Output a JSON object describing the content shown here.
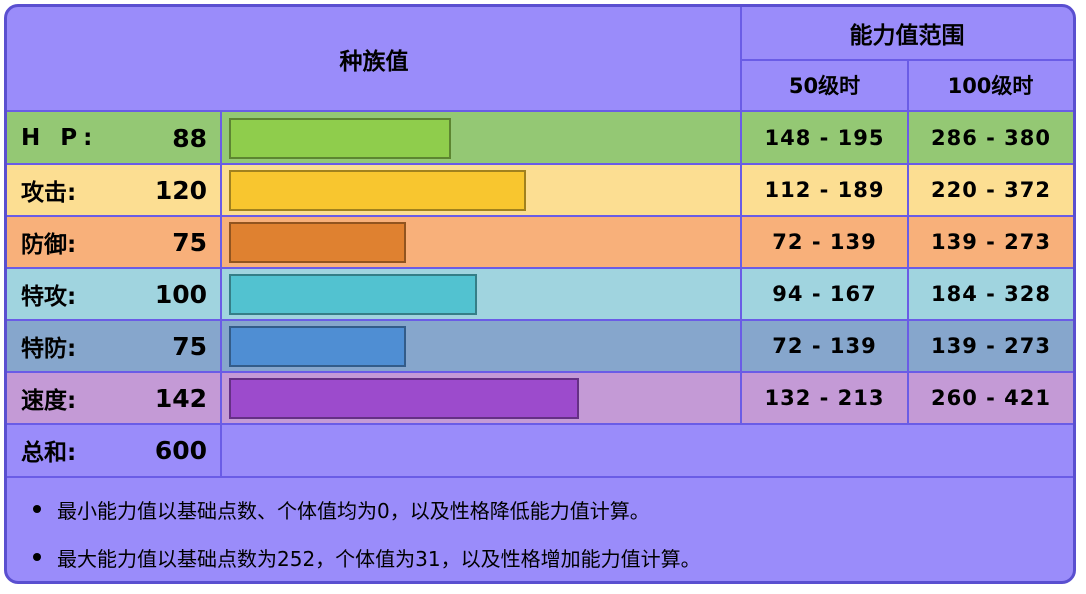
{
  "header": {
    "base_label": "种族值",
    "range_label": "能力值范围",
    "level50_label": "50级时",
    "level100_label": "100级时"
  },
  "stats": [
    {
      "label": "H P:",
      "value": "88",
      "range50": "148 - 195",
      "range100": "286 - 380",
      "fraction": 0.4348,
      "bar_color": "#8fcd4c",
      "row_color": "#94c874"
    },
    {
      "label": "攻击:",
      "value": "120",
      "range50": "112 - 189",
      "range100": "220 - 372",
      "fraction": 0.5826,
      "bar_color": "#f8c62f",
      "row_color": "#fcde92"
    },
    {
      "label": "防御:",
      "value": "75",
      "range50": "72 - 139",
      "range100": "139 - 273",
      "fraction": 0.3478,
      "bar_color": "#df8130",
      "row_color": "#f8b07a"
    },
    {
      "label": "特攻:",
      "value": "100",
      "range50": "94 - 167",
      "range100": "184 - 328",
      "fraction": 0.487,
      "bar_color": "#52c2d0",
      "row_color": "#a0d4df"
    },
    {
      "label": "特防:",
      "value": "75",
      "range50": "72 - 139",
      "range100": "139 - 273",
      "fraction": 0.3478,
      "bar_color": "#4f8ed3",
      "row_color": "#86a6cc"
    },
    {
      "label": "速度:",
      "value": "142",
      "range50": "132 - 213",
      "range100": "260 - 421",
      "fraction": 0.687,
      "bar_color": "#9c4bcc",
      "row_color": "#c49ad6"
    }
  ],
  "total": {
    "label": "总和:",
    "value": "600"
  },
  "notes": [
    "最小能力值以基础点数、个体值均为0，以及性格降低能力值计算。",
    "最大能力值以基础点数为252，个体值为31，以及性格增加能力值计算。"
  ]
}
